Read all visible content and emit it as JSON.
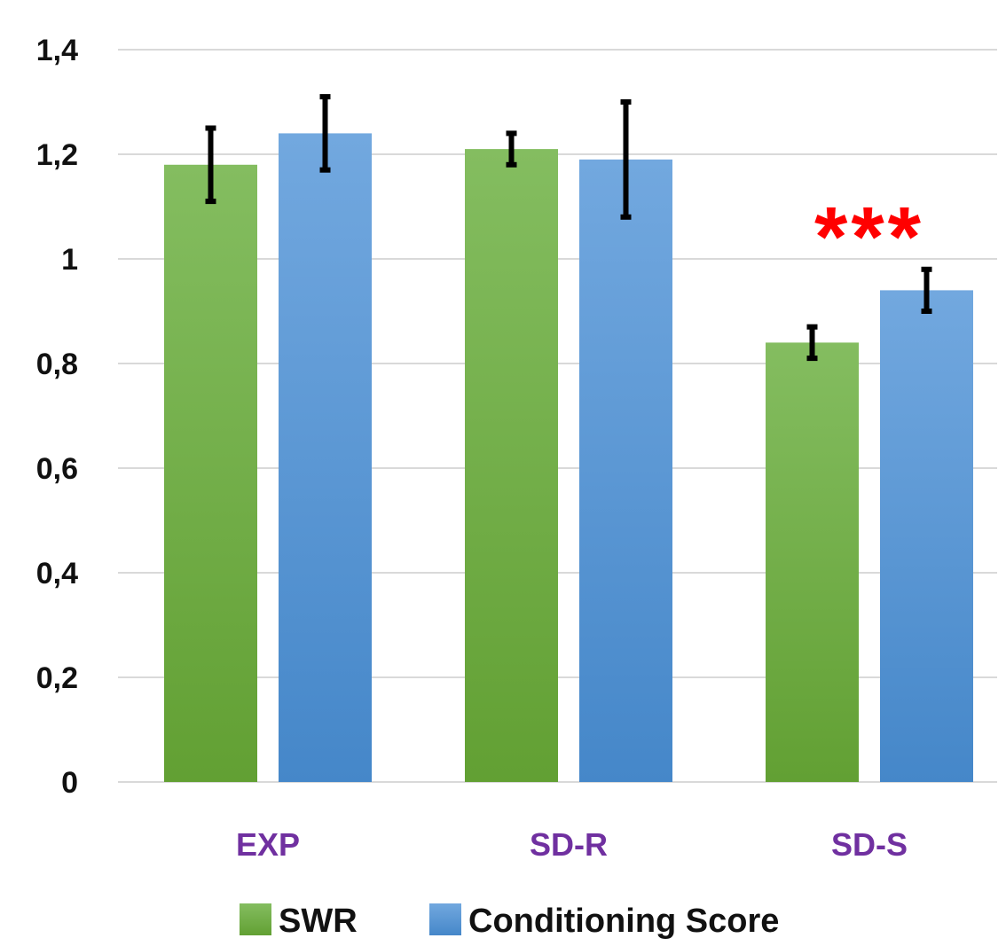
{
  "chart_data": {
    "type": "bar",
    "categories": [
      "EXP",
      "SD-R",
      "SD-S"
    ],
    "series": [
      {
        "name": "SWR",
        "values": [
          1.18,
          1.21,
          0.84
        ],
        "errors": [
          0.07,
          0.03,
          0.03
        ],
        "color_top": "#84bd60",
        "color_bottom": "#62a033"
      },
      {
        "name": "Conditioning Score",
        "values": [
          1.24,
          1.19,
          0.94
        ],
        "errors": [
          0.07,
          0.11,
          0.04
        ],
        "color_top": "#72a8df",
        "color_bottom": "#4587c9"
      }
    ],
    "ylim": [
      0,
      1.4
    ],
    "yticks": [
      "0",
      "0,2",
      "0,4",
      "0,6",
      "0,8",
      "1",
      "1,2",
      "1,4"
    ],
    "ytick_values": [
      0,
      0.2,
      0.4,
      0.6,
      0.8,
      1.0,
      1.2,
      1.4
    ],
    "grid": true,
    "legend_position": "bottom",
    "category_label_color": "#7030a0",
    "annotations": [
      {
        "text": "***",
        "category": "SD-S",
        "color": "#ff0000"
      }
    ]
  }
}
